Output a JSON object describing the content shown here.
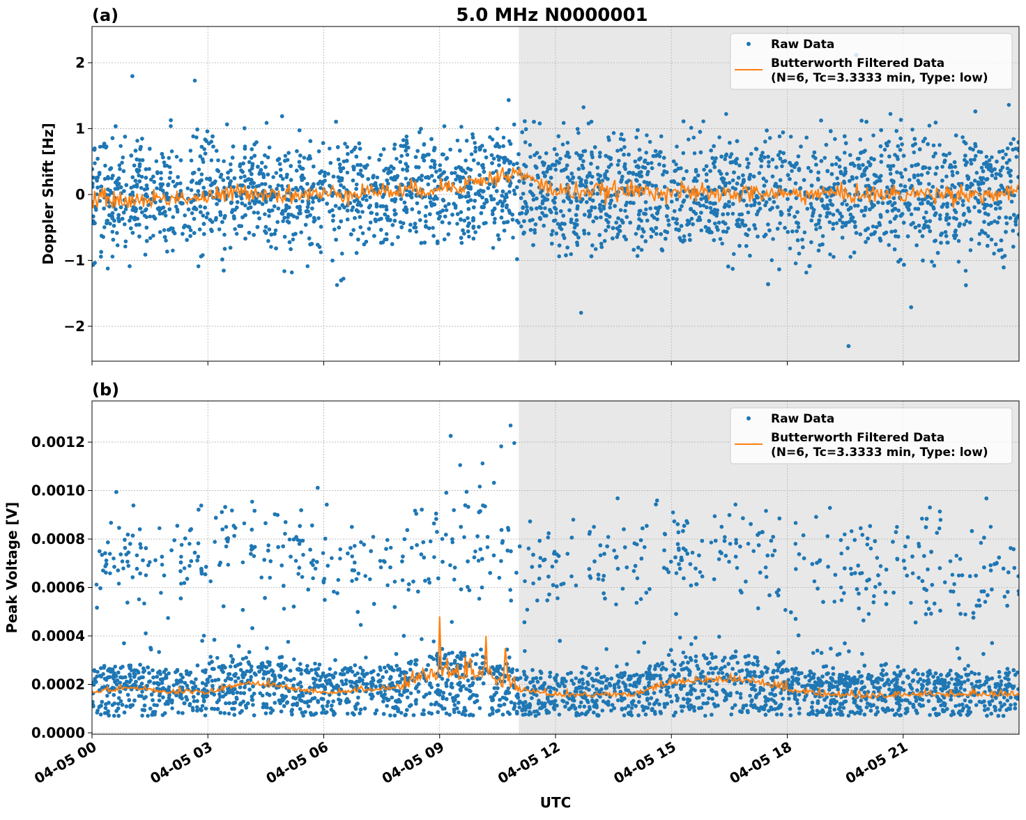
{
  "title": "5.0 MHz N0000001",
  "xlabel": "UTC",
  "x_tick_labels": [
    "04-05 00",
    "04-05 03",
    "04-05 06",
    "04-05 09",
    "04-05 12",
    "04-05 15",
    "04-05 18",
    "04-05 21"
  ],
  "legend": {
    "raw": "Raw Data",
    "filtered_line1": "Butterworth Filtered Data",
    "filtered_line2": "(N=6, Tc=3.3333 min, Type: low)"
  },
  "colors": {
    "raw": "#1f77b4",
    "filtered": "#ff7f0e",
    "shade": "#e8e8e8",
    "grid": "#b0b0b0"
  },
  "chart_data": [
    {
      "type": "scatter+line",
      "panel_label": "(a)",
      "ylabel": "Doppler Shift [Hz]",
      "xlim_hours_utc": [
        0,
        24
      ],
      "ylim": [
        -2.53,
        2.55
      ],
      "y_ticks": [
        -2,
        -1,
        0,
        1,
        2
      ],
      "y_tick_labels": [
        "−2",
        "−1",
        "0",
        "1",
        "2"
      ],
      "grid": true,
      "legend_placement": "upper right",
      "shaded_interval_hours_utc": [
        11.05,
        24
      ],
      "hours": [
        0,
        1,
        2,
        3,
        4,
        5,
        6,
        7,
        8,
        9,
        10,
        11,
        12,
        13,
        14,
        15,
        16,
        17,
        18,
        19,
        20,
        21,
        22,
        23,
        24
      ],
      "filtered_hourly_mean": [
        -0.05,
        -0.1,
        -0.05,
        -0.05,
        0.05,
        0.0,
        0.0,
        0.05,
        0.05,
        0.1,
        0.2,
        0.33,
        0.05,
        0.05,
        0.05,
        0.05,
        0.0,
        0.02,
        0.0,
        0.02,
        0.0,
        0.0,
        0.02,
        0.0,
        0.0
      ],
      "raw_hourly_spread": [
        0.45,
        0.45,
        0.45,
        0.45,
        0.45,
        0.45,
        0.45,
        0.45,
        0.45,
        0.45,
        0.42,
        0.5,
        0.55,
        0.55,
        0.52,
        0.5,
        0.5,
        0.5,
        0.5,
        0.5,
        0.5,
        0.5,
        0.5,
        0.5,
        0.5
      ],
      "raw_range": [
        -2.3,
        2.25
      ]
    },
    {
      "type": "scatter+line",
      "panel_label": "(b)",
      "ylabel": "Peak Voltage [V]",
      "xlim_hours_utc": [
        0,
        24
      ],
      "ylim": [
        -5.8e-06,
        0.00137
      ],
      "y_ticks": [
        0,
        0.0002,
        0.0004,
        0.0006,
        0.0008,
        0.001,
        0.0012
      ],
      "y_tick_labels": [
        "0.0000",
        "0.0002",
        "0.0004",
        "0.0006",
        "0.0008",
        "0.0010",
        "0.0012"
      ],
      "grid": true,
      "legend_placement": "upper right",
      "shaded_interval_hours_utc": [
        11.05,
        24
      ],
      "hours": [
        0,
        1,
        2,
        3,
        4,
        5,
        6,
        7,
        8,
        9,
        10,
        11,
        12,
        13,
        14,
        15,
        16,
        17,
        18,
        19,
        20,
        21,
        22,
        23,
        24
      ],
      "filtered_hourly_mean": [
        0.00016,
        0.00018,
        0.00016,
        0.00016,
        0.0002,
        0.00018,
        0.00016,
        0.00017,
        0.00018,
        0.00022,
        0.00022,
        0.00017,
        0.00015,
        0.00015,
        0.00015,
        0.0002,
        0.00021,
        0.00021,
        0.00017,
        0.00015,
        0.00014,
        0.00015,
        0.00015,
        0.00015,
        0.00015
      ],
      "filtered_spikes": [
        {
          "hour": 9.0,
          "value": 0.00048
        },
        {
          "hour": 10.2,
          "value": 0.0004
        },
        {
          "hour": 10.7,
          "value": 0.00035
        }
      ],
      "raw_hourly_upper_cloud_mean": [
        0.0007,
        0.00075,
        0.0007,
        0.0007,
        0.00075,
        0.00075,
        0.0007,
        0.0007,
        0.0007,
        0.00075,
        0.0008,
        0.0007,
        0.00068,
        0.00068,
        0.0007,
        0.00075,
        0.00075,
        0.00075,
        0.0007,
        0.00068,
        0.00065,
        0.0007,
        0.00068,
        0.00068,
        0.00068
      ],
      "raw_range": [
        5e-05,
        0.00131
      ]
    }
  ]
}
